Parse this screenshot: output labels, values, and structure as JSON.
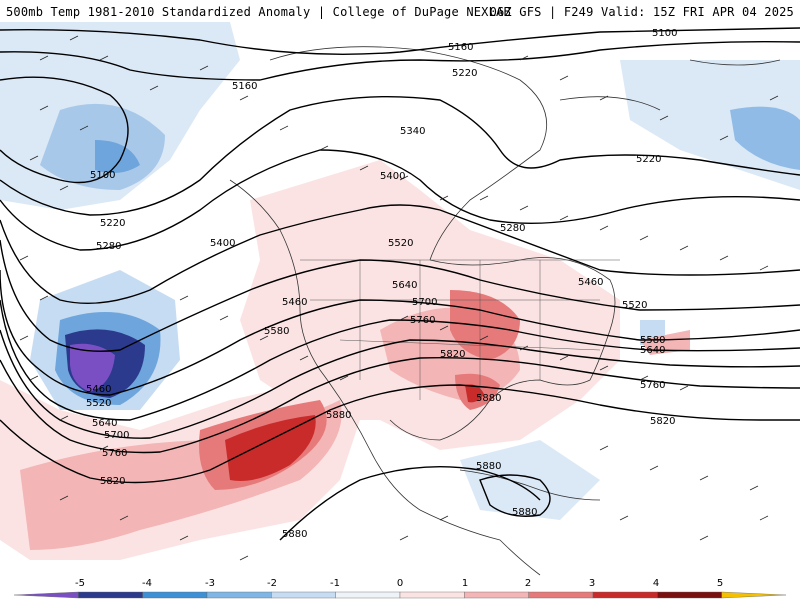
{
  "header": {
    "title_left": "500mb Temp 1981-2010 Standardized Anomaly | College of DuPage NEXLAB",
    "title_right": "06Z GFS | F249 Valid: 15Z FRI APR 04 2025"
  },
  "contour_labels": [
    "5100",
    "5160",
    "5220",
    "5280",
    "5340",
    "5400",
    "5460",
    "5520",
    "5580",
    "5640",
    "5700",
    "5760",
    "5820",
    "5880"
  ],
  "labels_on_map": [
    {
      "text": "5160",
      "id": "l1"
    },
    {
      "text": "5100",
      "id": "l2"
    },
    {
      "text": "5220",
      "id": "l3"
    },
    {
      "text": "5160",
      "id": "l4"
    },
    {
      "text": "5340",
      "id": "l5"
    },
    {
      "text": "5100",
      "id": "l6"
    },
    {
      "text": "5220",
      "id": "l7"
    },
    {
      "text": "5400",
      "id": "l8"
    },
    {
      "text": "5220",
      "id": "l9"
    },
    {
      "text": "5280",
      "id": "l10"
    },
    {
      "text": "5280",
      "id": "l11"
    },
    {
      "text": "5400",
      "id": "l12"
    },
    {
      "text": "5520",
      "id": "l13"
    },
    {
      "text": "5460",
      "id": "l14"
    },
    {
      "text": "5640",
      "id": "l15"
    },
    {
      "text": "5460",
      "id": "l16"
    },
    {
      "text": "5700",
      "id": "l17"
    },
    {
      "text": "5520",
      "id": "l18"
    },
    {
      "text": "5760",
      "id": "l19"
    },
    {
      "text": "5580",
      "id": "l20"
    },
    {
      "text": "5580",
      "id": "l21"
    },
    {
      "text": "5640",
      "id": "l22"
    },
    {
      "text": "5820",
      "id": "l23"
    },
    {
      "text": "5460",
      "id": "l24"
    },
    {
      "text": "5520",
      "id": "l25"
    },
    {
      "text": "5760",
      "id": "l26"
    },
    {
      "text": "5880",
      "id": "l27"
    },
    {
      "text": "5880",
      "id": "l28"
    },
    {
      "text": "5640",
      "id": "l29"
    },
    {
      "text": "5700",
      "id": "l30"
    },
    {
      "text": "5760",
      "id": "l31"
    },
    {
      "text": "5820",
      "id": "l32"
    },
    {
      "text": "5820",
      "id": "l33"
    },
    {
      "text": "5880",
      "id": "l34"
    },
    {
      "text": "5880",
      "id": "l35"
    },
    {
      "text": "5880",
      "id": "l36"
    }
  ],
  "colorbar": {
    "ticks": [
      "-5",
      "-4",
      "-3",
      "-2",
      "-1",
      "0",
      "1",
      "2",
      "3",
      "4",
      "5"
    ],
    "colors": [
      "#7a4fc4",
      "#2b3a8c",
      "#3d8fd6",
      "#7fb6e6",
      "#c6dcf2",
      "#eef3f8",
      "#fbe3e3",
      "#f3b5b5",
      "#e67a7a",
      "#c92b2b",
      "#7a1010",
      "#f5c000"
    ]
  }
}
